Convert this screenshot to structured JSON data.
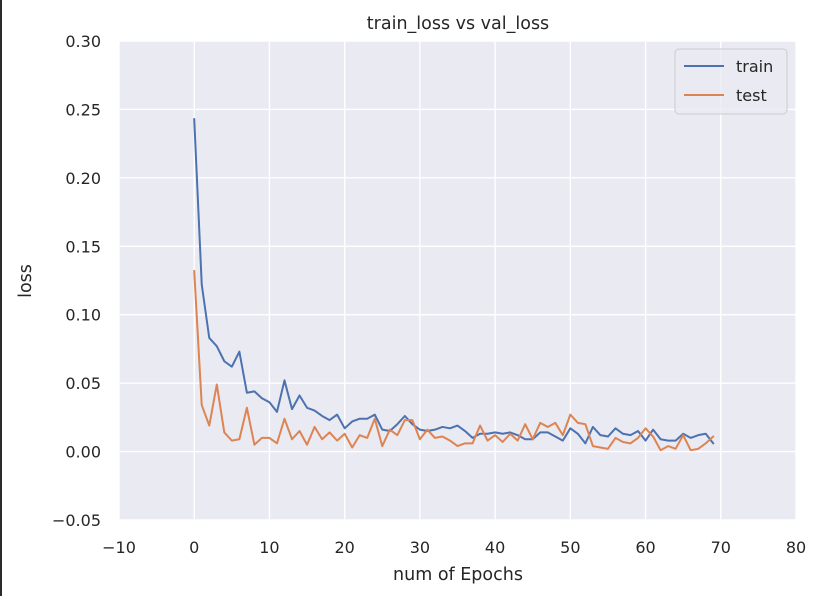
{
  "chart_data": {
    "type": "line",
    "title": "train_loss vs val_loss",
    "xlabel": "num of Epochs",
    "ylabel": "loss",
    "xlim": [
      -10,
      80
    ],
    "ylim": [
      -0.05,
      0.3
    ],
    "xticks": [
      -10,
      0,
      10,
      20,
      30,
      40,
      50,
      60,
      70,
      80
    ],
    "xtick_labels": [
      "−10",
      "0",
      "10",
      "20",
      "30",
      "40",
      "50",
      "60",
      "70",
      "80"
    ],
    "yticks": [
      -0.05,
      0.0,
      0.05,
      0.1,
      0.15,
      0.2,
      0.25,
      0.3
    ],
    "ytick_labels": [
      "−0.05",
      "0.00",
      "0.05",
      "0.10",
      "0.15",
      "0.20",
      "0.25",
      "0.30"
    ],
    "grid": true,
    "legend_position": "top-right",
    "colors": {
      "background": "#eaeaf2",
      "grid": "#ffffff",
      "train": "#4c72b0",
      "test": "#dd8452"
    },
    "series": [
      {
        "name": "train",
        "x": [
          0,
          1,
          2,
          3,
          4,
          5,
          6,
          7,
          8,
          9,
          10,
          11,
          12,
          13,
          14,
          15,
          16,
          17,
          18,
          19,
          20,
          21,
          22,
          23,
          24,
          25,
          26,
          27,
          28,
          29,
          30,
          31,
          32,
          33,
          34,
          35,
          36,
          37,
          38,
          39,
          40,
          41,
          42,
          43,
          44,
          45,
          46,
          47,
          48,
          49,
          50,
          51,
          52,
          53,
          54,
          55,
          56,
          57,
          58,
          59,
          60,
          61,
          62,
          63,
          64,
          65,
          66,
          67,
          68,
          69
        ],
        "values": [
          0.243,
          0.122,
          0.083,
          0.077,
          0.066,
          0.062,
          0.073,
          0.043,
          0.044,
          0.039,
          0.036,
          0.029,
          0.052,
          0.031,
          0.041,
          0.032,
          0.03,
          0.026,
          0.023,
          0.027,
          0.017,
          0.022,
          0.024,
          0.024,
          0.027,
          0.016,
          0.015,
          0.02,
          0.026,
          0.02,
          0.016,
          0.015,
          0.016,
          0.018,
          0.017,
          0.019,
          0.015,
          0.01,
          0.013,
          0.013,
          0.014,
          0.013,
          0.014,
          0.012,
          0.009,
          0.009,
          0.014,
          0.014,
          0.011,
          0.008,
          0.017,
          0.013,
          0.006,
          0.018,
          0.012,
          0.011,
          0.017,
          0.013,
          0.012,
          0.015,
          0.008,
          0.016,
          0.009,
          0.008,
          0.008,
          0.013,
          0.01,
          0.012,
          0.013,
          0.006
        ]
      },
      {
        "name": "test",
        "x": [
          0,
          1,
          2,
          3,
          4,
          5,
          6,
          7,
          8,
          9,
          10,
          11,
          12,
          13,
          14,
          15,
          16,
          17,
          18,
          19,
          20,
          21,
          22,
          23,
          24,
          25,
          26,
          27,
          28,
          29,
          30,
          31,
          32,
          33,
          34,
          35,
          36,
          37,
          38,
          39,
          40,
          41,
          42,
          43,
          44,
          45,
          46,
          47,
          48,
          49,
          50,
          51,
          52,
          53,
          54,
          55,
          56,
          57,
          58,
          59,
          60,
          61,
          62,
          63,
          64,
          65,
          66,
          67,
          68,
          69
        ],
        "values": [
          0.132,
          0.034,
          0.019,
          0.049,
          0.014,
          0.008,
          0.009,
          0.032,
          0.005,
          0.01,
          0.01,
          0.006,
          0.024,
          0.009,
          0.015,
          0.005,
          0.018,
          0.009,
          0.014,
          0.008,
          0.013,
          0.003,
          0.012,
          0.01,
          0.024,
          0.004,
          0.016,
          0.012,
          0.023,
          0.023,
          0.009,
          0.016,
          0.01,
          0.011,
          0.008,
          0.004,
          0.006,
          0.006,
          0.019,
          0.008,
          0.012,
          0.007,
          0.013,
          0.008,
          0.02,
          0.009,
          0.021,
          0.018,
          0.021,
          0.012,
          0.027,
          0.021,
          0.02,
          0.004,
          0.003,
          0.002,
          0.01,
          0.007,
          0.006,
          0.01,
          0.017,
          0.011,
          0.001,
          0.004,
          0.002,
          0.012,
          0.001,
          0.002,
          0.006,
          0.011
        ]
      }
    ]
  }
}
